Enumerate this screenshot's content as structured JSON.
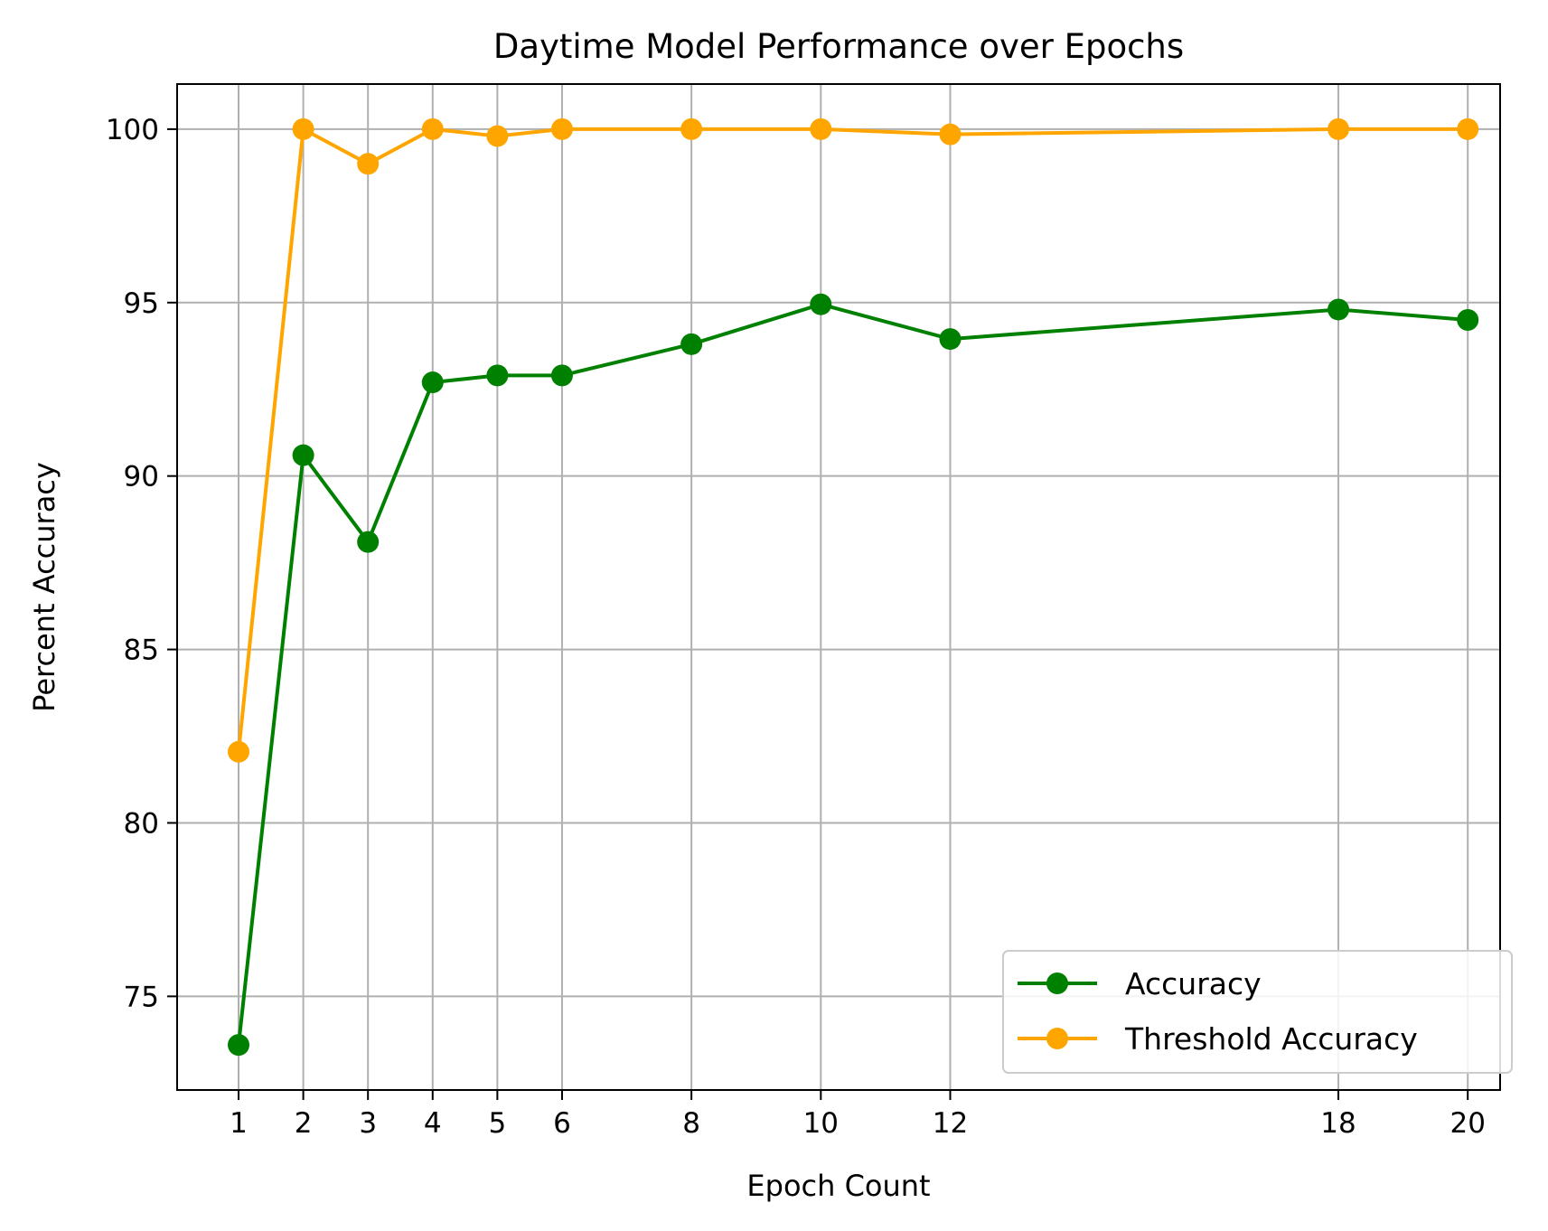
{
  "chart_data": {
    "type": "line",
    "title": "Daytime Model Performance over Epochs",
    "xlabel": "Epoch Count",
    "ylabel": "Percent Accuracy",
    "x": [
      1,
      2,
      3,
      4,
      5,
      6,
      8,
      10,
      12,
      18,
      20
    ],
    "xticks": [
      "1",
      "2",
      "3",
      "4",
      "5",
      "6",
      "8",
      "10",
      "12",
      "18",
      "20"
    ],
    "yticks": [
      "75",
      "80",
      "85",
      "90",
      "95",
      "100"
    ],
    "xlim": [
      0.05,
      20.5
    ],
    "ylim": [
      72.3,
      101.3
    ],
    "grid": true,
    "legend_position": "lower-right",
    "series": [
      {
        "name": "Accuracy",
        "color": "#008000",
        "marker": "circle",
        "values": [
          73.6,
          90.6,
          88.1,
          92.7,
          92.9,
          92.9,
          93.8,
          94.95,
          93.95,
          94.8,
          94.5
        ]
      },
      {
        "name": "Threshold Accuracy",
        "color": "#FFA500",
        "marker": "circle",
        "values": [
          82.05,
          100.0,
          99.0,
          100.0,
          99.8,
          100.0,
          100.0,
          100.0,
          99.85,
          100.0,
          100.0
        ]
      }
    ]
  }
}
